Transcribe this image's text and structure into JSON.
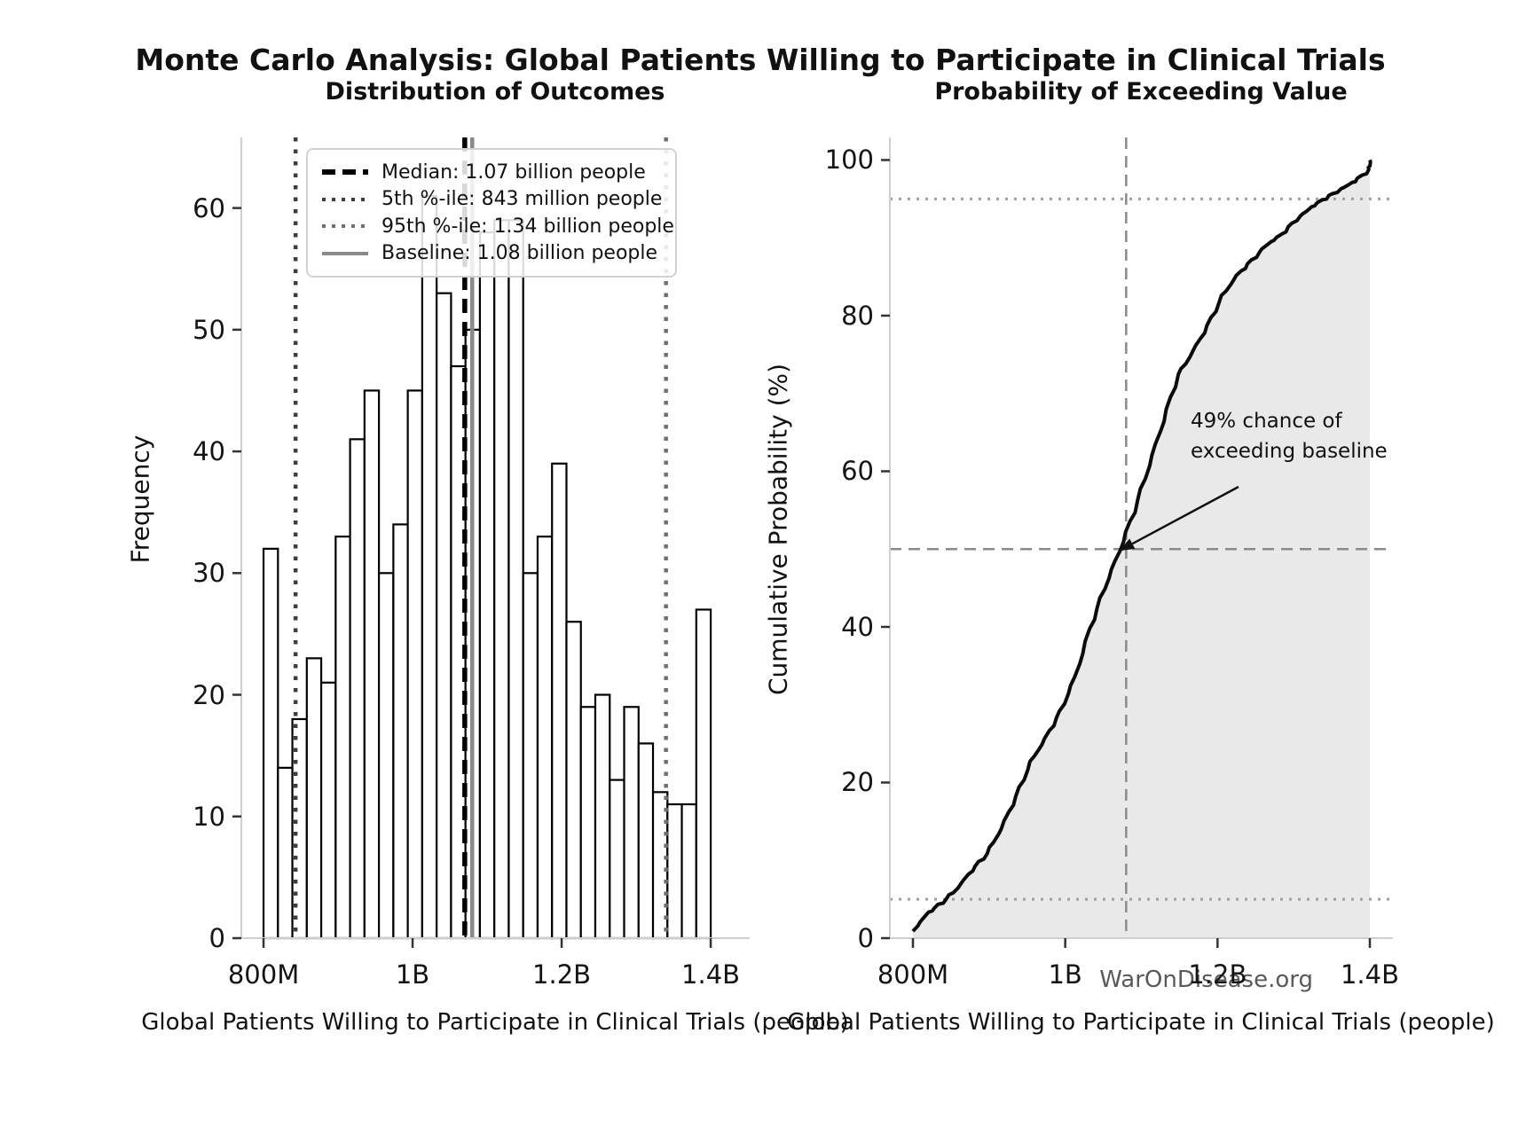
{
  "figure": {
    "title": "Monte Carlo Analysis: Global Patients Willing to Participate in Clinical Trials",
    "footer": "WarOnDisease.org"
  },
  "chart_data": [
    {
      "type": "bar",
      "title": "Distribution of Outcomes",
      "xlabel": "Global Patients Willing to Participate in Clinical Trials (people)",
      "ylabel": "Frequency",
      "histogram": {
        "bin_start_millions": 800,
        "bin_width_millions": 19.355,
        "counts": [
          32,
          14,
          18,
          23,
          21,
          33,
          41,
          45,
          30,
          34,
          45,
          61,
          53,
          47,
          50,
          58,
          59,
          59,
          30,
          33,
          39,
          26,
          19,
          20,
          13,
          19,
          16,
          12,
          11,
          11,
          27
        ]
      },
      "x_ticks": [
        {
          "millions": 800,
          "label": "800M"
        },
        {
          "millions": 1000,
          "label": "1B"
        },
        {
          "millions": 1200,
          "label": "1.2B"
        },
        {
          "millions": 1400,
          "label": "1.4B"
        }
      ],
      "y_ticks": [
        0,
        10,
        20,
        30,
        40,
        50,
        60
      ],
      "xlim_millions": [
        770.2,
        1452.3
      ],
      "ylim": [
        0,
        65.8
      ],
      "grid": false,
      "legend_position": "upper left",
      "bar_fill": "#ffffff",
      "bar_edge": "#000000",
      "reference_lines": [
        {
          "id": "median",
          "millions": 1070,
          "label": "Median: 1.07 billion people",
          "style": "dashed",
          "color": "#000000",
          "width": 5.5
        },
        {
          "id": "p5",
          "millions": 843,
          "label": "5th %-ile: 843 million people",
          "style": "dotted",
          "color": "#3d3d3d",
          "width": 4.5
        },
        {
          "id": "p95",
          "millions": 1340,
          "label": "95th %-ile: 1.34 billion people",
          "style": "dotted",
          "color": "#6f6f6f",
          "width": 4.5
        },
        {
          "id": "baseline",
          "millions": 1080,
          "label": "Baseline: 1.08 billion people",
          "style": "solid",
          "color": "#8a8a8a",
          "width": 4.5
        }
      ]
    },
    {
      "type": "line",
      "title": "Probability of Exceeding Value",
      "xlabel": "Global Patients Willing to Participate in Clinical Trials (people)",
      "ylabel": "Cumulative Probability (%)",
      "x_ticks": [
        {
          "millions": 800,
          "label": "800M"
        },
        {
          "millions": 1000,
          "label": "1B"
        },
        {
          "millions": 1200,
          "label": "1.2B"
        },
        {
          "millions": 1400,
          "label": "1.4B"
        }
      ],
      "y_ticks": [
        0,
        20,
        40,
        60,
        80,
        100
      ],
      "xlim_millions": [
        769.7,
        1430.3
      ],
      "ylim": [
        0,
        102.9
      ],
      "grid": false,
      "line_color": "#0a0a0a",
      "fill_color": "#e9e9e9",
      "cdf_points": {
        "x_millions": [
          800,
          819.4,
          838.7,
          858.1,
          877.4,
          896.8,
          916.1,
          935.5,
          954.8,
          974.2,
          993.5,
          1012.9,
          1032.3,
          1051.6,
          1071.0,
          1090.3,
          1109.7,
          1129.0,
          1148.4,
          1167.7,
          1187.1,
          1206.5,
          1225.8,
          1245.2,
          1264.5,
          1283.9,
          1303.2,
          1322.6,
          1341.9,
          1361.3,
          1380.6,
          1399.0,
          1400.0
        ],
        "cumulative_percent": [
          0.9,
          3.2,
          4.6,
          6.4,
          8.7,
          10.8,
          14.1,
          18.2,
          22.7,
          25.7,
          29.1,
          33.6,
          39.7,
          45.0,
          49.7,
          54.8,
          60.6,
          66.5,
          72.4,
          75.4,
          78.7,
          82.6,
          85.2,
          87.1,
          89.1,
          90.4,
          92.3,
          93.9,
          95.1,
          96.2,
          97.3,
          98.7,
          100.0
        ]
      },
      "guide_lines": [
        {
          "id": "p95-horizontal",
          "percent": 95,
          "style": "dotted",
          "color": "#9e9e9e",
          "width": 3
        },
        {
          "id": "p5-horizontal",
          "percent": 5,
          "style": "dotted",
          "color": "#9e9e9e",
          "width": 3
        },
        {
          "id": "fifty-horizontal",
          "percent": 50,
          "style": "dashed",
          "color": "#8a8a8a",
          "width": 2.5
        },
        {
          "id": "baseline-vertical",
          "millions": 1080,
          "style": "dashed",
          "color": "#8a8a8a",
          "width": 2.5
        }
      ],
      "annotation": {
        "text": "49% chance of\nexceeding baseline",
        "arrow_to": {
          "millions": 1080,
          "percent": 50
        }
      }
    }
  ]
}
